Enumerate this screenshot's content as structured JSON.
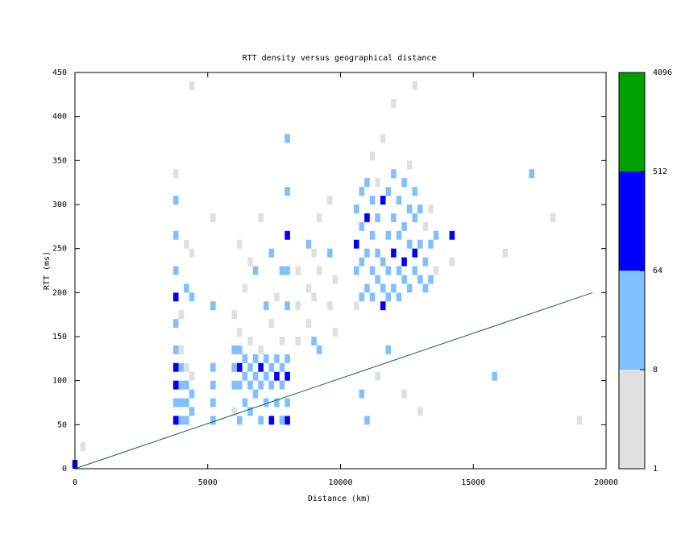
{
  "chart_data": {
    "type": "heatmap",
    "title": "RTT density versus geographical distance",
    "xlabel": "Distance (km)",
    "ylabel": "RTT (ms)",
    "xlim": [
      0,
      20000
    ],
    "xticks": [
      0,
      5000,
      10000,
      15000,
      20000
    ],
    "ylim": [
      0,
      450
    ],
    "yticks": [
      0,
      50,
      100,
      150,
      200,
      250,
      300,
      350,
      400,
      450
    ],
    "colorbar": {
      "log": true,
      "lim": [
        1,
        4096
      ],
      "ticks": [
        1,
        8,
        64,
        512,
        4096
      ],
      "colors": [
        "#e0e0e0",
        "#80c0ff",
        "#0000ff",
        "#00a000"
      ]
    },
    "columns": [
      {
        "x": 0,
        "y": [
          5
        ],
        "values": [
          90
        ]
      },
      {
        "x": 300,
        "y": [
          25
        ],
        "values": [
          4
        ]
      },
      {
        "x": 3800,
        "y": [
          55,
          75,
          95,
          115,
          135,
          165,
          195,
          225,
          265,
          305,
          335
        ],
        "values": [
          120,
          40,
          90,
          150,
          20,
          10,
          70,
          30,
          12,
          9,
          3
        ]
      },
      {
        "x": 4000,
        "y": [
          55,
          75,
          95,
          115,
          135,
          175
        ],
        "values": [
          20,
          12,
          30,
          15,
          5,
          4
        ]
      },
      {
        "x": 4200,
        "y": [
          55,
          75,
          95,
          115,
          205,
          255
        ],
        "values": [
          40,
          25,
          10,
          6,
          9,
          4
        ]
      },
      {
        "x": 4400,
        "y": [
          65,
          85,
          105,
          195,
          245,
          435
        ],
        "values": [
          15,
          9,
          5,
          8,
          3,
          3
        ]
      },
      {
        "x": 5200,
        "y": [
          55,
          75,
          95,
          115,
          185,
          285
        ],
        "values": [
          12,
          30,
          20,
          35,
          9,
          3
        ]
      },
      {
        "x": 6000,
        "y": [
          65,
          95,
          115,
          135,
          175
        ],
        "values": [
          5,
          20,
          40,
          10,
          4
        ]
      },
      {
        "x": 6200,
        "y": [
          55,
          95,
          115,
          135,
          155,
          255
        ],
        "values": [
          9,
          30,
          80,
          25,
          6,
          3
        ]
      },
      {
        "x": 6400,
        "y": [
          75,
          105,
          125,
          205
        ],
        "values": [
          10,
          45,
          15,
          4
        ]
      },
      {
        "x": 6600,
        "y": [
          65,
          95,
          115,
          145,
          235
        ],
        "values": [
          12,
          35,
          20,
          5,
          3
        ]
      },
      {
        "x": 6800,
        "y": [
          85,
          105,
          125,
          225
        ],
        "values": [
          9,
          25,
          12,
          9
        ]
      },
      {
        "x": 7000,
        "y": [
          55,
          95,
          115,
          135,
          285
        ],
        "values": [
          10,
          30,
          70,
          5,
          3
        ]
      },
      {
        "x": 7200,
        "y": [
          75,
          105,
          125,
          185
        ],
        "values": [
          15,
          50,
          20,
          9
        ]
      },
      {
        "x": 7400,
        "y": [
          55,
          95,
          115,
          165,
          245
        ],
        "values": [
          80,
          30,
          15,
          4,
          9
        ]
      },
      {
        "x": 7600,
        "y": [
          75,
          105,
          125,
          195
        ],
        "values": [
          20,
          90,
          18,
          6
        ]
      },
      {
        "x": 7800,
        "y": [
          55,
          95,
          115,
          145,
          225
        ],
        "values": [
          12,
          40,
          25,
          4,
          9
        ]
      },
      {
        "x": 8000,
        "y": [
          55,
          75,
          105,
          125,
          185,
          225,
          265,
          315,
          375
        ],
        "values": [
          70,
          25,
          100,
          20,
          9,
          40,
          80,
          10,
          12
        ]
      },
      {
        "x": 8400,
        "y": [
          145,
          185,
          225
        ],
        "values": [
          4,
          5,
          3
        ]
      },
      {
        "x": 8800,
        "y": [
          165,
          205,
          255
        ],
        "values": [
          3,
          4,
          9
        ]
      },
      {
        "x": 9000,
        "y": [
          145,
          195,
          245
        ],
        "values": [
          12,
          6,
          3
        ]
      },
      {
        "x": 9200,
        "y": [
          135,
          225,
          285
        ],
        "values": [
          9,
          4,
          3
        ]
      },
      {
        "x": 9600,
        "y": [
          185,
          245,
          305
        ],
        "values": [
          3,
          20,
          4
        ]
      },
      {
        "x": 9800,
        "y": [
          155,
          215
        ],
        "values": [
          3,
          4
        ]
      },
      {
        "x": 10600,
        "y": [
          185,
          225,
          255,
          295
        ],
        "values": [
          3,
          15,
          70,
          9
        ]
      },
      {
        "x": 10800,
        "y": [
          85,
          195,
          235,
          275,
          315
        ],
        "values": [
          9,
          30,
          40,
          12,
          25
        ]
      },
      {
        "x": 11000,
        "y": [
          55,
          205,
          245,
          285,
          325
        ],
        "values": [
          9,
          45,
          25,
          90,
          15
        ]
      },
      {
        "x": 11200,
        "y": [
          195,
          225,
          265,
          305,
          355
        ],
        "values": [
          20,
          35,
          12,
          30,
          4
        ]
      },
      {
        "x": 11400,
        "y": [
          105,
          215,
          245,
          285,
          325
        ],
        "values": [
          4,
          25,
          15,
          40,
          6
        ]
      },
      {
        "x": 11600,
        "y": [
          185,
          205,
          235,
          305,
          375
        ],
        "values": [
          80,
          30,
          20,
          100,
          3
        ]
      },
      {
        "x": 11800,
        "y": [
          135,
          195,
          225,
          265,
          315
        ],
        "values": [
          9,
          15,
          30,
          25,
          12
        ]
      },
      {
        "x": 12000,
        "y": [
          205,
          245,
          285,
          335,
          415
        ],
        "values": [
          35,
          90,
          20,
          9,
          3
        ]
      },
      {
        "x": 12200,
        "y": [
          195,
          225,
          265,
          305
        ],
        "values": [
          20,
          40,
          15,
          25
        ]
      },
      {
        "x": 12400,
        "y": [
          85,
          215,
          235,
          275,
          325
        ],
        "values": [
          4,
          30,
          110,
          20,
          12
        ]
      },
      {
        "x": 12600,
        "y": [
          205,
          255,
          295,
          345
        ],
        "values": [
          15,
          40,
          25,
          5
        ]
      },
      {
        "x": 12800,
        "y": [
          225,
          245,
          285,
          315,
          435
        ],
        "values": [
          25,
          85,
          15,
          20,
          3
        ]
      },
      {
        "x": 13000,
        "y": [
          65,
          215,
          255,
          295
        ],
        "values": [
          3,
          12,
          20,
          9
        ]
      },
      {
        "x": 13200,
        "y": [
          205,
          235,
          275
        ],
        "values": [
          15,
          25,
          6
        ]
      },
      {
        "x": 13400,
        "y": [
          215,
          255,
          295
        ],
        "values": [
          10,
          9,
          4
        ]
      },
      {
        "x": 13600,
        "y": [
          225,
          265
        ],
        "values": [
          5,
          12
        ]
      },
      {
        "x": 14200,
        "y": [
          235,
          265
        ],
        "values": [
          4,
          70
        ]
      },
      {
        "x": 15800,
        "y": [
          105
        ],
        "values": [
          9
        ]
      },
      {
        "x": 16200,
        "y": [
          245
        ],
        "values": [
          3
        ]
      },
      {
        "x": 17200,
        "y": [
          335
        ],
        "values": [
          9
        ]
      },
      {
        "x": 18000,
        "y": [
          285
        ],
        "values": [
          3
        ]
      },
      {
        "x": 19000,
        "y": [
          55
        ],
        "values": [
          3
        ]
      }
    ],
    "line": {
      "color": "#0a6b3a",
      "x": [
        0,
        19500
      ],
      "values": [
        0,
        200
      ]
    }
  }
}
